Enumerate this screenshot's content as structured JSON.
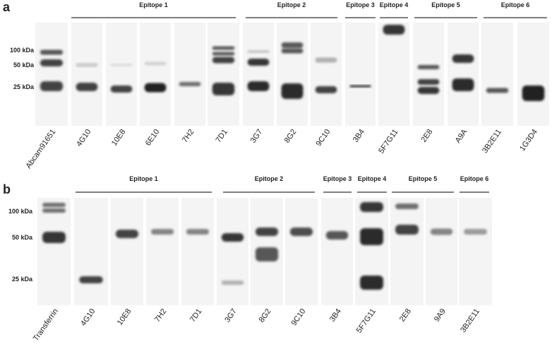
{
  "panels": [
    {
      "label": "a",
      "epitopes": [
        "Epitope 1",
        "Epitope 2",
        "Epitope 3",
        "Epitope 4",
        "Epitope 5",
        "Epitope 6"
      ],
      "markers": [
        "100 kDa",
        "50 kDa",
        "25 kDa"
      ],
      "lanes": [
        "Abcam91651",
        "4G10",
        "10E8",
        "6E10",
        "7H2",
        "7D1",
        "3G7",
        "8G2",
        "9C10",
        "3B4",
        "5F7G11",
        "2E8",
        "A9A",
        "3B2E11",
        "1G3D4"
      ]
    },
    {
      "label": "b",
      "epitopes": [
        "Epitope 1",
        "Epitope 2",
        "Epitope 3",
        "Epitope 4",
        "Epitope 5",
        "Epitope 6"
      ],
      "markers": [
        "100 kDa",
        "50 kDa",
        "25 kDa"
      ],
      "lanes": [
        "Transferrin",
        "4G10",
        "10E8",
        "7H2",
        "7D1",
        "3G7",
        "8G2",
        "9C10",
        "3B4",
        "5F7G11",
        "2E8",
        "9A9",
        "3B2E11"
      ]
    }
  ]
}
